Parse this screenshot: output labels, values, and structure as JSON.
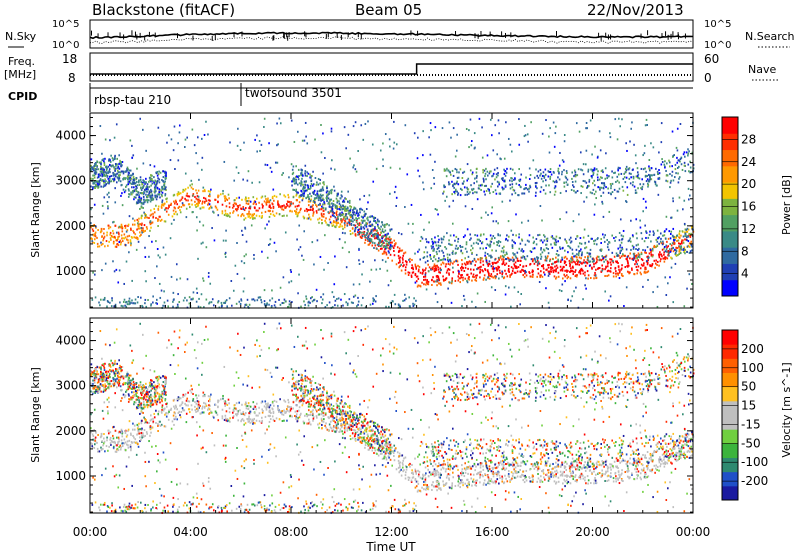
{
  "header": {
    "station": "Blackstone (fitACF)",
    "beam": "Beam 05",
    "date": "22/Nov/2013"
  },
  "top_panel": {
    "left_label": "N.Sky",
    "right_label": "N.Search",
    "left_ticks": [
      "10^5",
      "10^0"
    ],
    "right_ticks": [
      "10^5",
      "10^0"
    ]
  },
  "freq_panel": {
    "left_label_1": "Freq.",
    "left_label_2": "[MHz]",
    "left_ticks": [
      "18",
      "8"
    ],
    "right_ticks": [
      "60",
      "0"
    ],
    "right_label": "Nave"
  },
  "cpid_panel": {
    "label": "CPID",
    "programs": [
      {
        "name": "rbsp-tau 210",
        "start_hour": 0
      },
      {
        "name": "twofsound 3501",
        "start_hour": 6
      }
    ]
  },
  "x_axis": {
    "title": "Time UT",
    "range_hours": [
      0,
      24
    ],
    "ticks": [
      "00:00",
      "04:00",
      "08:00",
      "12:00",
      "16:00",
      "20:00",
      "00:00"
    ]
  },
  "power_panel": {
    "ylabel": "Slant Range [km]",
    "yticks": [
      "1000",
      "2000",
      "3000",
      "4000"
    ],
    "colorbar_title": "Power [dB]",
    "colorbar_ticks": [
      "4",
      "8",
      "12",
      "16",
      "20",
      "24",
      "28"
    ],
    "colors": [
      "#0000ff",
      "#1f3fb4",
      "#2f6aa0",
      "#3a8a86",
      "#51a062",
      "#7db33f",
      "#f2c400",
      "#ff9900",
      "#ff6a00",
      "#ff2f00",
      "#ff0000"
    ]
  },
  "velocity_panel": {
    "ylabel": "Slant Range [km]",
    "yticks": [
      "1000",
      "2000",
      "3000",
      "4000"
    ],
    "colorbar_title": "Velocity [m s^-1]",
    "colorbar_ticks": [
      "200",
      "100",
      "50",
      "15",
      "-15",
      "-50",
      "-100",
      "-200"
    ],
    "colors": [
      "#1a1aa0",
      "#2050c8",
      "#2e8a70",
      "#3cb43c",
      "#70d040",
      "#bfbfbf",
      "#bfbfbf",
      "#ffc020",
      "#ff9000",
      "#ff6000",
      "#ff2a00",
      "#ff0000"
    ]
  },
  "chart_data": {
    "type": "heatmap",
    "x_range_hours": [
      0,
      24
    ],
    "y_range_km": [
      180,
      4500
    ],
    "scatter_tracks_km": [
      {
        "hours": [
          0,
          1.5,
          2.5,
          4,
          6,
          8,
          10,
          12,
          13,
          16,
          20,
          22,
          24
        ],
        "range_km": [
          1800,
          1800,
          2200,
          2700,
          2400,
          2500,
          2200,
          1500,
          900,
          1100,
          1100,
          1200,
          1800
        ]
      },
      {
        "hours": [
          0,
          1,
          2,
          2.5,
          3
        ],
        "range_km": [
          3100,
          3300,
          2700,
          2900,
          3000
        ]
      },
      {
        "hours": [
          8,
          9,
          10,
          11,
          12
        ],
        "range_km": [
          3100,
          2800,
          2400,
          2000,
          1700
        ]
      },
      {
        "hours": [
          13,
          16,
          20,
          24
        ],
        "range_km": [
          1500,
          1550,
          1500,
          1700
        ]
      },
      {
        "hours": [
          14,
          18,
          22,
          24
        ],
        "range_km": [
          3000,
          3000,
          3000,
          3500
        ]
      }
    ]
  }
}
